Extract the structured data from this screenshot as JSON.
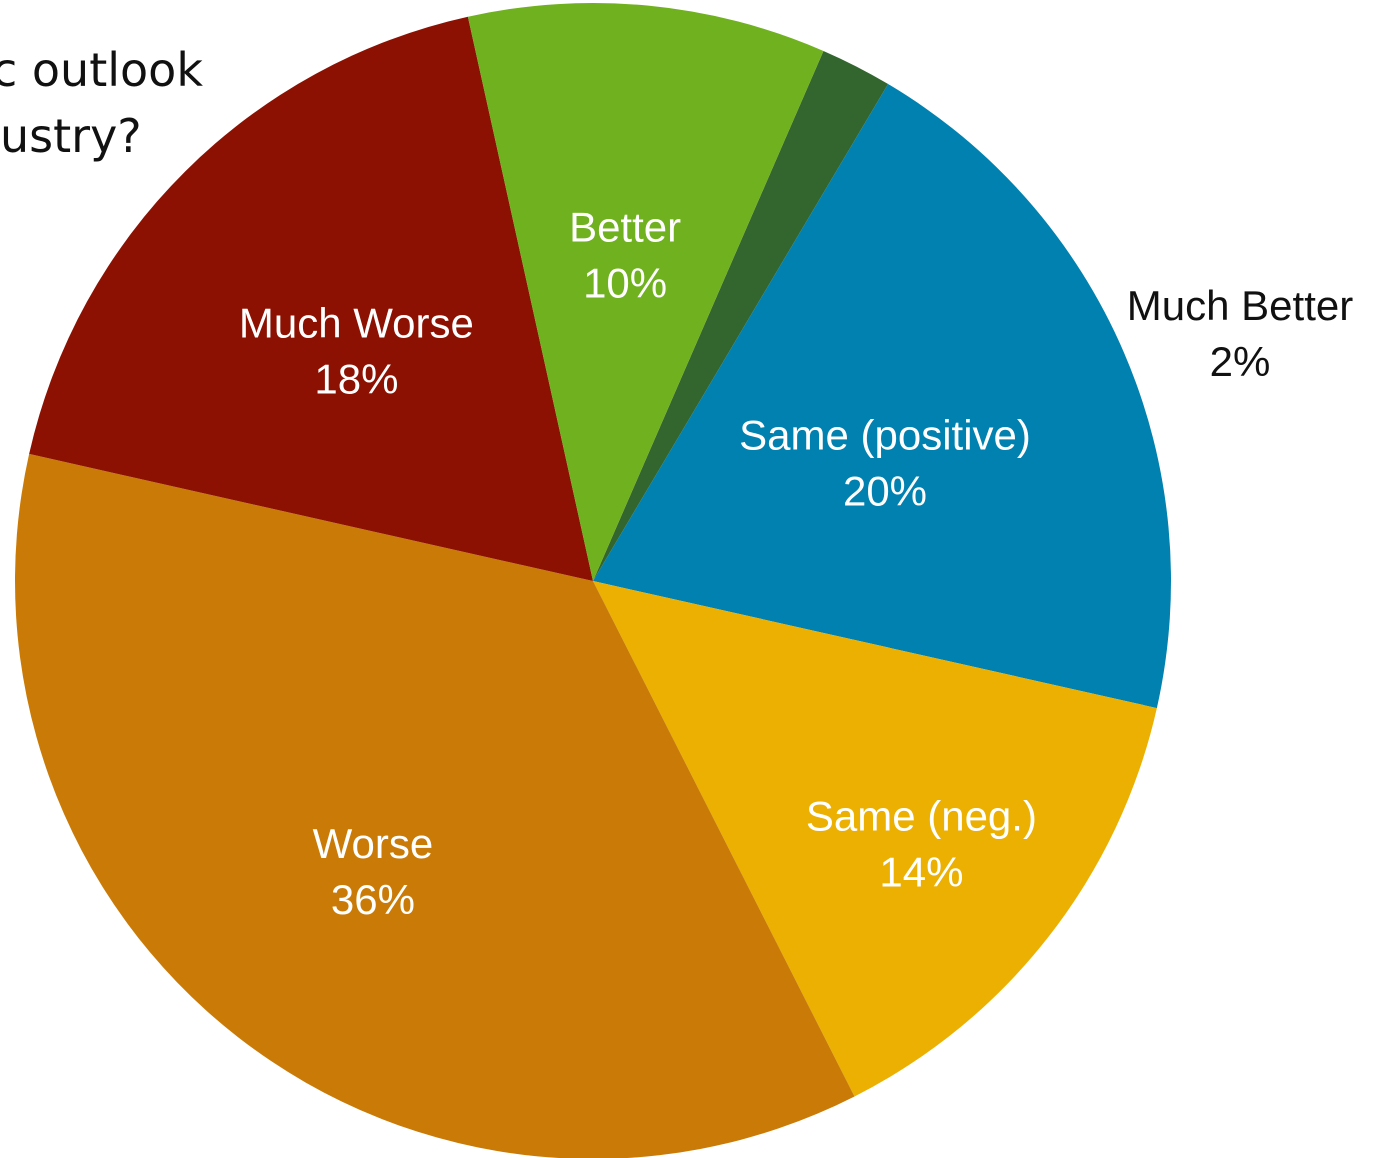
{
  "question": {
    "line1": "c outlook",
    "line2": "ustry?"
  },
  "chart_data": {
    "type": "pie",
    "title": "",
    "slices": [
      {
        "label": "Much Better",
        "value": 2,
        "pct_label": "2%",
        "color": "#33652e",
        "label_color": "#111111"
      },
      {
        "label": "Same (positive)",
        "value": 20,
        "pct_label": "20%",
        "color": "#0181b0",
        "label_color": "#ffffff"
      },
      {
        "label": "Same (neg.)",
        "value": 14,
        "pct_label": "14%",
        "color": "#ebb002",
        "label_color": "#ffffff"
      },
      {
        "label": "Worse",
        "value": 36,
        "pct_label": "36%",
        "color": "#ca7b07",
        "label_color": "#ffffff"
      },
      {
        "label": "Much Worse",
        "value": 18,
        "pct_label": "18%",
        "color": "#8c1102",
        "label_color": "#ffffff"
      },
      {
        "label": "Better",
        "value": 10,
        "pct_label": "10%",
        "color": "#70b11f",
        "label_color": "#ffffff"
      }
    ]
  }
}
